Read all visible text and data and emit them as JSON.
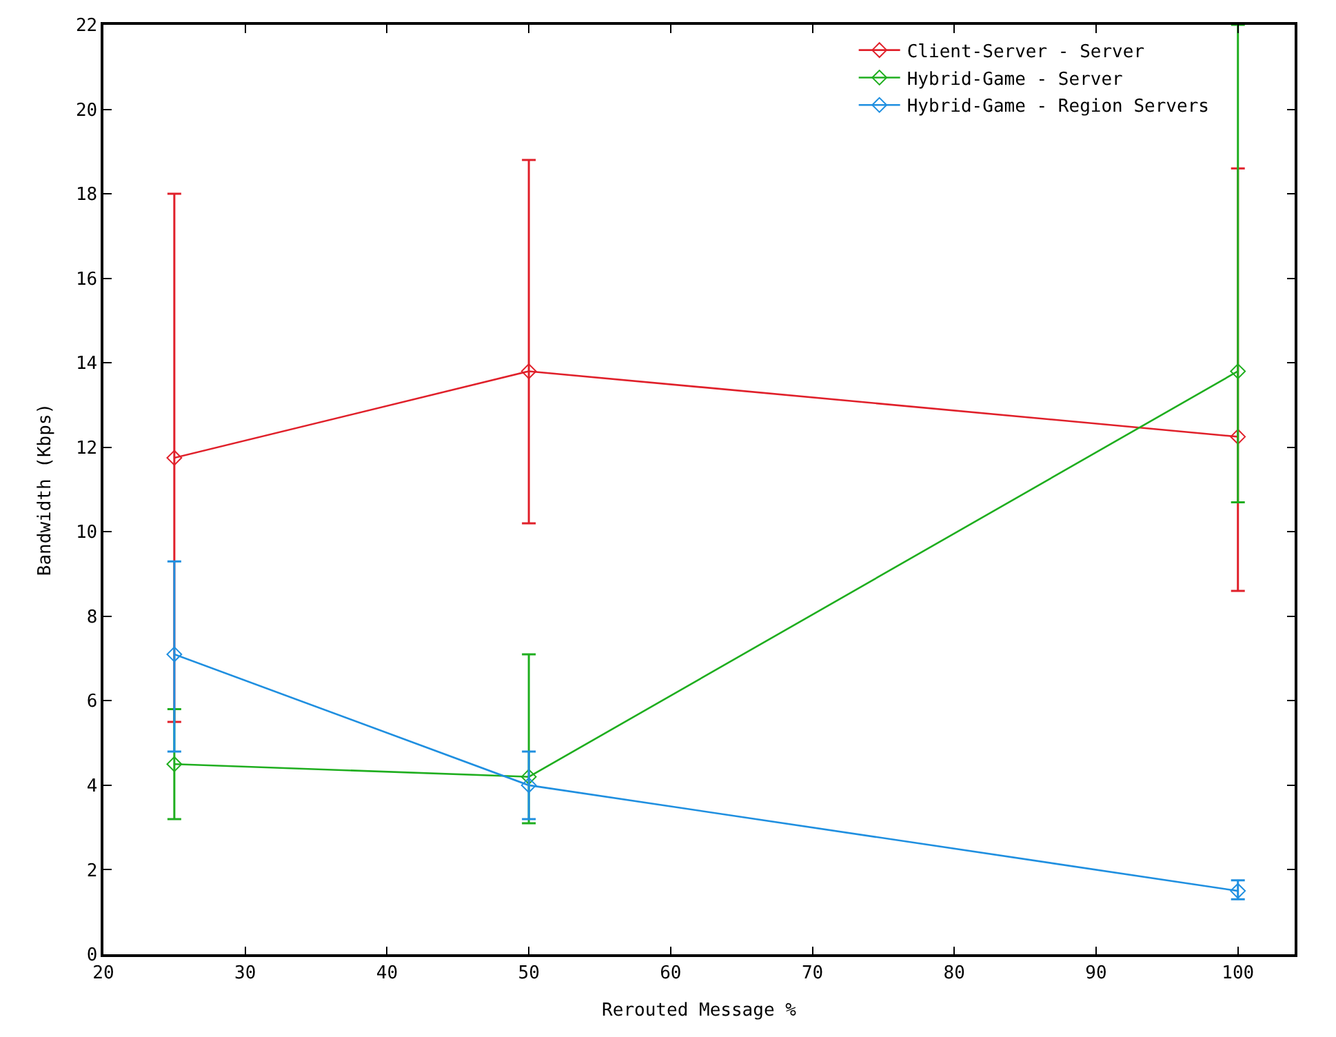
{
  "chart_data": {
    "type": "line",
    "xlabel": "Rerouted Message %",
    "ylabel": "Bandwidth (Kbps)",
    "x": [
      25,
      50,
      100
    ],
    "xlim": [
      20,
      104
    ],
    "xticks": [
      20,
      30,
      40,
      50,
      60,
      70,
      80,
      90,
      100
    ],
    "ylim": [
      0,
      22
    ],
    "yticks": [
      0,
      2,
      4,
      6,
      8,
      10,
      12,
      14,
      16,
      18,
      20,
      22
    ],
    "legend": "top right",
    "marker": "diamond",
    "line_style": "solid",
    "series": [
      {
        "name": "Client-Server - Server",
        "color": "#e0202a",
        "values": [
          11.75,
          13.8,
          12.25
        ],
        "errors": [
          [
            5.5,
            18.0
          ],
          [
            10.2,
            18.8
          ],
          [
            8.6,
            18.6
          ]
        ]
      },
      {
        "name": "Hybrid-Game - Server",
        "color": "#1fae1f",
        "values": [
          4.5,
          4.2,
          13.8
        ],
        "errors": [
          [
            3.2,
            5.8
          ],
          [
            3.1,
            7.1
          ],
          [
            10.7,
            22
          ]
        ]
      },
      {
        "name": "Hybrid-Game - Region Servers",
        "color": "#1f8fe0",
        "values": [
          7.1,
          4.0,
          1.5
        ],
        "errors": [
          [
            4.8,
            9.3
          ],
          [
            3.2,
            4.8
          ],
          [
            1.3,
            1.75
          ]
        ]
      }
    ]
  }
}
